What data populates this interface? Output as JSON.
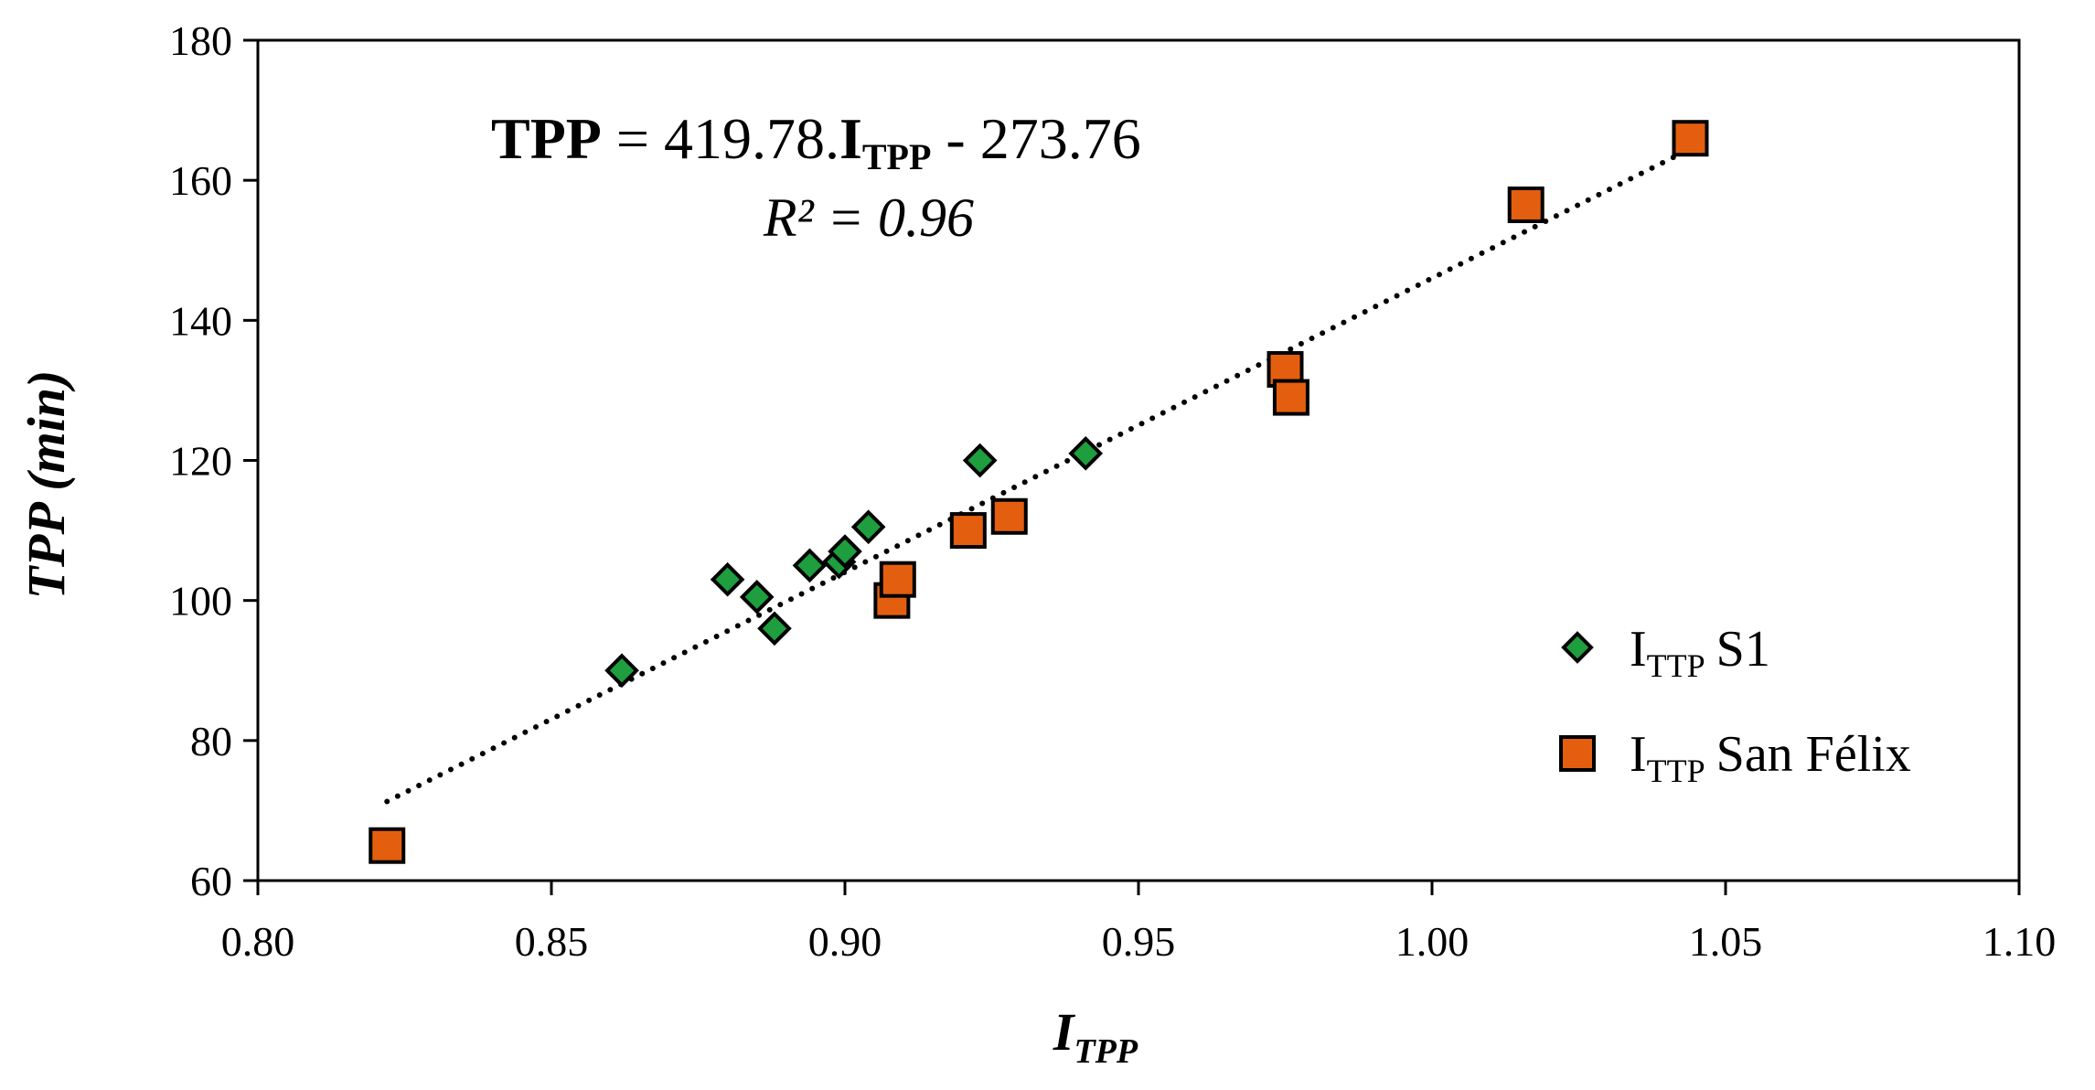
{
  "chart_data": {
    "type": "scatter",
    "xlabel": {
      "main": "I",
      "sub": "TPP"
    },
    "ylabel": "TPP (min)",
    "xlim": [
      0.8,
      1.1
    ],
    "ylim": [
      60,
      180
    ],
    "x_ticks": [
      0.8,
      0.85,
      0.9,
      0.95,
      1.0,
      1.05,
      1.1
    ],
    "x_tick_labels": [
      "0.80",
      "0.85",
      "0.90",
      "0.95",
      "1.00",
      "1.05",
      "1.10"
    ],
    "y_ticks": [
      60,
      80,
      100,
      120,
      140,
      160,
      180
    ],
    "y_tick_labels": [
      "60",
      "80",
      "100",
      "120",
      "140",
      "160",
      "180"
    ],
    "grid": false,
    "legend_position": "right",
    "series": [
      {
        "name": "S1",
        "name_prefix": "I",
        "name_sub": "TTP",
        "marker": "diamond",
        "color": "#1e9e3e",
        "x": [
          0.862,
          0.88,
          0.885,
          0.888,
          0.894,
          0.899,
          0.9,
          0.904,
          0.923,
          0.941
        ],
        "y": [
          90,
          103,
          100.5,
          96,
          105,
          105.5,
          107,
          110.5,
          120,
          121
        ]
      },
      {
        "name": "San Félix",
        "name_prefix": "I",
        "name_sub": "TTP",
        "marker": "square",
        "color": "#e35f0f",
        "x": [
          0.822,
          0.908,
          0.909,
          0.921,
          0.928,
          0.975,
          0.976,
          1.016,
          1.044
        ],
        "y": [
          65,
          100,
          103,
          110,
          112,
          133,
          129,
          156.5,
          166
        ]
      }
    ],
    "trendline": {
      "style": "dotted",
      "slope": 419.78,
      "intercept": -273.76,
      "x_range": [
        0.822,
        1.044
      ]
    },
    "annotation": {
      "eq_lhs": "TPP",
      "eq_mid": " = 419.78.",
      "eq_var": "I",
      "eq_var_sub": "TPP",
      "eq_rhs": " - 273.76",
      "r2": "R² = 0.96"
    }
  }
}
